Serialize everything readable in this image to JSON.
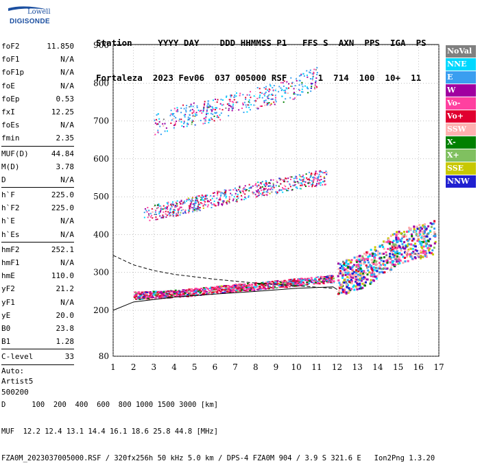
{
  "logo": {
    "line1": "Lowell",
    "line2": "DIGISONDE"
  },
  "header": {
    "line1": "Station     YYYY DAY    DDD HHMMSS P1   FFS S  AXN  PPS  IGA  PS",
    "line2": "Fortaleza  2023 Fev06  037 005000 RSF      1  714  100  10+  11"
  },
  "params": {
    "group1": [
      [
        "foF2",
        "11.850"
      ],
      [
        "foF1",
        "N/A"
      ],
      [
        "foF1p",
        "N/A"
      ],
      [
        "foE",
        "N/A"
      ],
      [
        "foEp",
        "0.53"
      ],
      [
        "fxI",
        "12.25"
      ],
      [
        "foEs",
        "N/A"
      ],
      [
        "fmin",
        "2.35"
      ]
    ],
    "group2": [
      [
        "MUF(D)",
        "44.84"
      ],
      [
        "M(D)",
        "3.78"
      ],
      [
        "D",
        "N/A"
      ]
    ],
    "group3": [
      [
        "h`F",
        "225.0"
      ],
      [
        "h`F2",
        "225.0"
      ],
      [
        "h`E",
        "N/A"
      ],
      [
        "h`Es",
        "N/A"
      ]
    ],
    "group4": [
      [
        "hmF2",
        "252.1"
      ],
      [
        "hmF1",
        "N/A"
      ],
      [
        "hmE",
        "110.0"
      ],
      [
        "yF2",
        "21.2"
      ],
      [
        "yF1",
        "N/A"
      ],
      [
        "yE",
        "20.0"
      ],
      [
        "B0",
        "23.8"
      ],
      [
        "B1",
        "1.28"
      ]
    ],
    "group5": [
      [
        "C-level",
        "33"
      ]
    ],
    "auto": [
      "Auto:",
      "Artist5",
      "500200"
    ]
  },
  "legend": [
    {
      "label": "NoVal",
      "color": "#808080"
    },
    {
      "label": "NNE",
      "color": "#00d8ff"
    },
    {
      "label": "E",
      "color": "#3a9ef0"
    },
    {
      "label": "W",
      "color": "#a000a0"
    },
    {
      "label": "Vo-",
      "color": "#ff40a0"
    },
    {
      "label": "Vo+",
      "color": "#e00030"
    },
    {
      "label": "SSW",
      "color": "#ffb0b0"
    },
    {
      "label": "X-",
      "color": "#008000"
    },
    {
      "label": "X+",
      "color": "#80c060"
    },
    {
      "label": "SSE",
      "color": "#c8c800"
    },
    {
      "label": "NNW",
      "color": "#2020d0"
    }
  ],
  "footer": {
    "line1": "D      100  200  400  600  800 1000 1500 3000 [km]",
    "line2": "MUF  12.2 12.4 13.1 14.4 16.1 18.6 25.8 44.8 [MHz]",
    "line3": "FZA0M_2023037005000.RSF / 320fx256h 50 kHz 5.0 km / DPS-4 FZA0M 904 / 3.9 S 321.6 E   Ion2Png 1.3.20"
  },
  "chart_data": {
    "type": "scatter",
    "xlim": [
      1,
      17
    ],
    "ylim": [
      80,
      900
    ],
    "x_ticks": [
      "1",
      "2",
      "3",
      "4",
      "5",
      "6",
      "7",
      "8",
      "9",
      "10",
      "11",
      "12",
      "13",
      "14",
      "15",
      "16",
      "17"
    ],
    "y_ticks": [
      "80",
      "200",
      "300",
      "400",
      "500",
      "600",
      "700",
      "800",
      "900"
    ],
    "grid": true,
    "traces": [
      {
        "name": "F trace (O)",
        "x": [
          2.0,
          4,
          6,
          8,
          10,
          11.8
        ],
        "y": [
          240,
          245,
          255,
          265,
          275,
          285
        ]
      },
      {
        "name": "F trace (X)",
        "x": [
          12,
          13,
          14,
          15,
          16.8
        ],
        "y": [
          285,
          300,
          330,
          370,
          395
        ]
      },
      {
        "name": "2nd multiple",
        "x": [
          2.5,
          4,
          6,
          8,
          10,
          11.5
        ],
        "y": [
          455,
          470,
          495,
          520,
          540,
          555
        ]
      },
      {
        "name": "3rd multiple",
        "x": [
          3,
          4,
          6,
          8,
          10,
          11
        ],
        "y": [
          690,
          710,
          730,
          760,
          790,
          820
        ]
      }
    ],
    "profile": {
      "x": [
        1,
        2,
        4,
        6,
        8,
        10,
        11.8,
        12
      ],
      "y": [
        200,
        222,
        235,
        243,
        250,
        258,
        262,
        255
      ]
    }
  }
}
